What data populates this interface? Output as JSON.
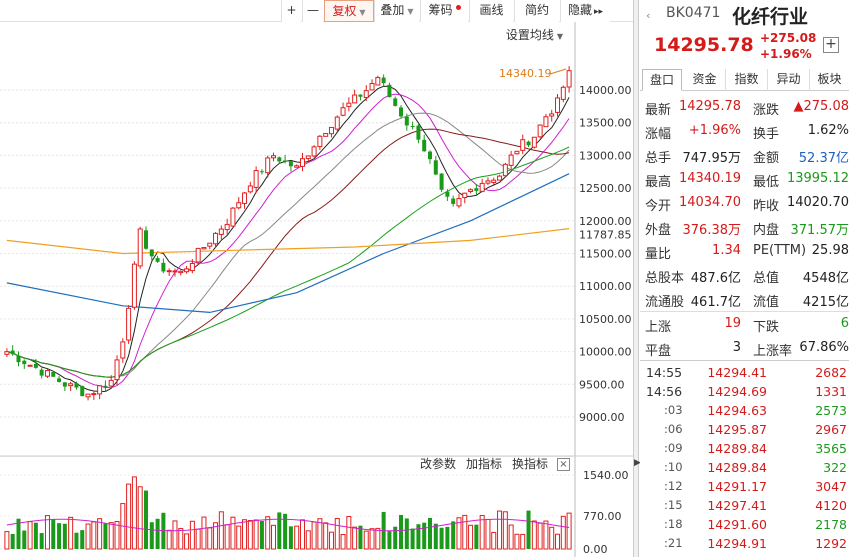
{
  "toolbar": {
    "plus": "+",
    "minus": "—",
    "fuquan": "复权",
    "diejia": "叠加",
    "chouma": "筹码",
    "huaxian": "画线",
    "jianyue": "简约",
    "yincang": "隐藏",
    "more": "▸▸"
  },
  "chart": {
    "setting_label": "设置均线",
    "high_label": "14340.19",
    "price_ticks": [
      "14000.00",
      "13500.00",
      "13000.00",
      "12500.00",
      "12000.00",
      "11787.85",
      "11500.00",
      "11000.00",
      "10500.00",
      "10000.00",
      "9500.00",
      "9000.00"
    ],
    "volume_ticks": [
      "1540.00",
      "770.00",
      "0.00"
    ],
    "indicator_links": [
      "改参数",
      "加指标",
      "换指标"
    ],
    "close_label": "×",
    "colors": {
      "up": "#e02020",
      "down": "#1a9a1a",
      "ma5": "#222222",
      "ma10": "#d020d0",
      "ma20": "#888888",
      "ma30": "#8b1a1a",
      "ma60": "#1aa01a",
      "ma120": "#1f6fbf",
      "ma250": "#f0a020"
    }
  },
  "panel": {
    "nav_left": "‹",
    "code": "BK0471",
    "name": "化纤行业",
    "price": "14295.78",
    "change": "+275.08",
    "change_pct": "+1.96%",
    "plus": "+",
    "tabs": [
      "盘口",
      "资金",
      "指数",
      "异动",
      "板块"
    ],
    "rows": [
      {
        "l1": "最新",
        "v1": "14295.78",
        "c1": "red",
        "l2": "涨跌",
        "v2": "▲275.08",
        "c2": "red"
      },
      {
        "l1": "涨幅",
        "v1": "+1.96%",
        "c1": "red",
        "l2": "换手",
        "v2": "1.62%",
        "c2": "dark"
      },
      {
        "l1": "总手",
        "v1": "747.95万",
        "c1": "dark",
        "l2": "金额",
        "v2": "52.37亿",
        "c2": "blue"
      },
      {
        "l1": "最高",
        "v1": "14340.19",
        "c1": "red",
        "l2": "最低",
        "v2": "13995.12",
        "c2": "green"
      },
      {
        "l1": "今开",
        "v1": "14034.70",
        "c1": "red",
        "l2": "昨收",
        "v2": "14020.70",
        "c2": "dark"
      },
      {
        "l1": "外盘",
        "v1": "376.38万",
        "c1": "red",
        "l2": "内盘",
        "v2": "371.57万",
        "c2": "green"
      },
      {
        "l1": "量比",
        "v1": "1.34",
        "c1": "red",
        "l2": "PE(TTM)",
        "v2": "25.98",
        "c2": "dark"
      },
      {
        "l1": "总股本",
        "v1": "487.6亿",
        "c1": "dark",
        "l2": "总值",
        "v2": "4548亿",
        "c2": "dark"
      },
      {
        "l1": "流通股",
        "v1": "461.7亿",
        "c1": "dark",
        "l2": "流值",
        "v2": "4215亿",
        "c2": "dark"
      },
      {
        "l1": "上涨",
        "v1": "19",
        "c1": "red",
        "l2": "下跌",
        "v2": "6",
        "c2": "green"
      },
      {
        "l1": "平盘",
        "v1": "3",
        "c1": "dark",
        "l2": "上涨率",
        "v2": "67.86%",
        "c2": "dark"
      }
    ],
    "trades": [
      {
        "time": "14:55",
        "sub": false,
        "price": "14294.41",
        "vol": "2682",
        "vc": "red"
      },
      {
        "time": "14:56",
        "sub": false,
        "price": "14294.69",
        "vol": "1331",
        "vc": "red"
      },
      {
        "time": ":03",
        "sub": true,
        "price": "14294.63",
        "vol": "2573",
        "vc": "green"
      },
      {
        "time": ":06",
        "sub": true,
        "price": "14295.87",
        "vol": "2967",
        "vc": "red"
      },
      {
        "time": ":09",
        "sub": true,
        "price": "14289.84",
        "vol": "3565",
        "vc": "green"
      },
      {
        "time": ":10",
        "sub": true,
        "price": "14289.84",
        "vol": "322",
        "vc": "green"
      },
      {
        "time": ":12",
        "sub": true,
        "price": "14291.17",
        "vol": "3047",
        "vc": "red"
      },
      {
        "time": ":15",
        "sub": true,
        "price": "14297.41",
        "vol": "4120",
        "vc": "red"
      },
      {
        "time": ":18",
        "sub": true,
        "price": "14291.60",
        "vol": "2178",
        "vc": "green"
      },
      {
        "time": ":21",
        "sub": true,
        "price": "14294.91",
        "vol": "1292",
        "vc": "red"
      }
    ]
  }
}
